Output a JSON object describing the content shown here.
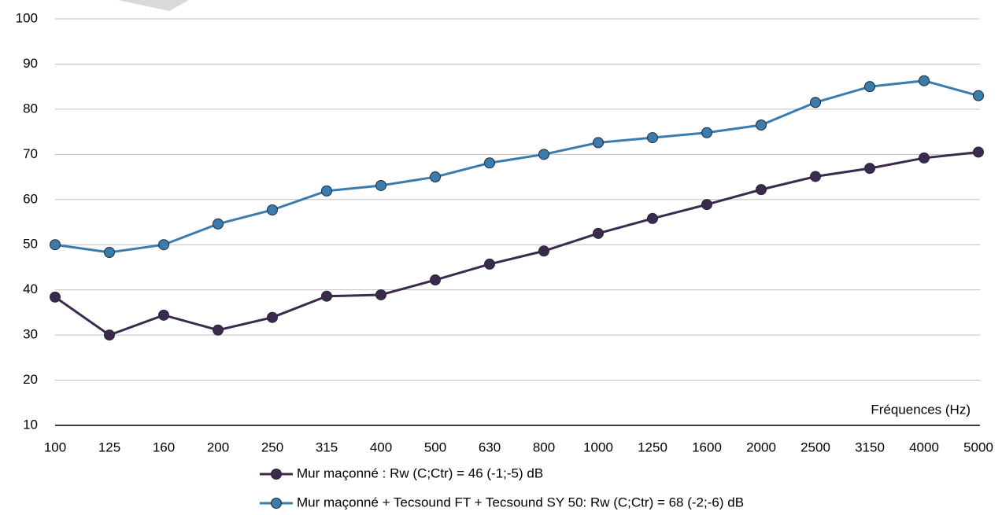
{
  "chart_data": {
    "type": "line",
    "categories": [
      "100",
      "125",
      "160",
      "200",
      "250",
      "315",
      "400",
      "500",
      "630",
      "800",
      "1000",
      "1250",
      "1600",
      "2000",
      "2500",
      "3150",
      "4000",
      "5000"
    ],
    "series": [
      {
        "name": "Mur maçonné : Rw (C;Ctr) = 46 (-1;-5) dB",
        "color": "#3b2a4e",
        "values": [
          38.4,
          30,
          34.4,
          31.1,
          33.9,
          38.6,
          38.9,
          42.2,
          45.7,
          48.6,
          52.5,
          55.8,
          58.9,
          62.2,
          65.1,
          66.9,
          69.2,
          70.5
        ]
      },
      {
        "name": "Mur maçonné + Tecsound FT + Tecsound SY 50: Rw (C;Ctr) = 68 (-2;-6) dB",
        "color": "#3b7cad",
        "values": [
          50,
          48.3,
          50,
          54.6,
          57.7,
          61.9,
          63.1,
          65,
          68.1,
          70,
          72.6,
          73.7,
          74.8,
          76.5,
          81.5,
          85,
          86.3,
          83
        ]
      }
    ],
    "xlabel": "Fréquences (Hz)",
    "ylim": [
      10,
      100
    ],
    "yticks": [
      10,
      20,
      30,
      40,
      50,
      60,
      70,
      80,
      90,
      100
    ],
    "grid": true
  }
}
